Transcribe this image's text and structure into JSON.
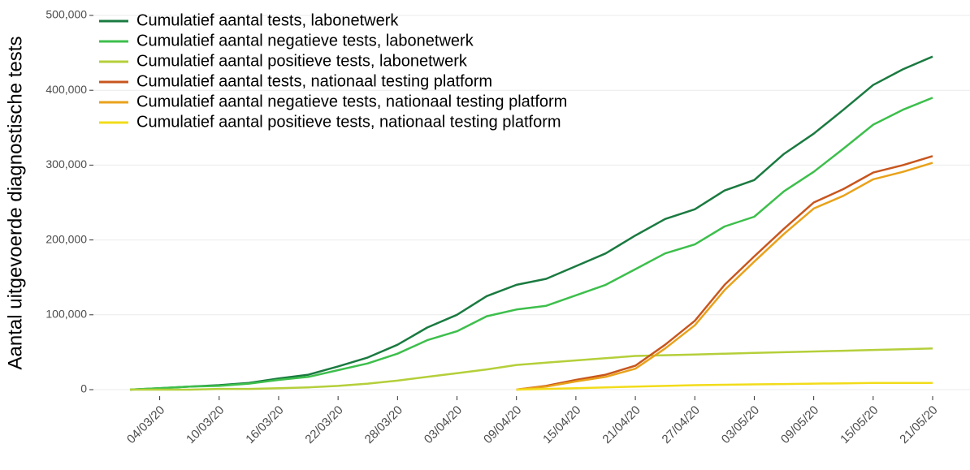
{
  "chart_data": {
    "type": "line",
    "y_label": "Aantal uitgevoerde diagnostische tests",
    "categories": [
      "01/03/20",
      "04/03/20",
      "07/03/20",
      "10/03/20",
      "13/03/20",
      "16/03/20",
      "19/03/20",
      "22/03/20",
      "25/03/20",
      "28/03/20",
      "31/03/20",
      "03/04/20",
      "06/04/20",
      "09/04/20",
      "12/04/20",
      "15/04/20",
      "18/04/20",
      "21/04/20",
      "24/04/20",
      "27/04/20",
      "30/04/20",
      "03/05/20",
      "06/05/20",
      "09/05/20",
      "12/05/20",
      "15/05/20",
      "18/05/20",
      "21/05/20"
    ],
    "xticks": [
      "04/03/20",
      "10/03/20",
      "16/03/20",
      "22/03/20",
      "28/03/20",
      "03/04/20",
      "09/04/20",
      "15/04/20",
      "21/04/20",
      "27/04/20",
      "03/05/20",
      "09/05/20",
      "15/05/20",
      "21/05/20"
    ],
    "ylim": [
      0,
      500000
    ],
    "yticks": [
      0,
      {
        "value": 100000,
        "label": "100,000"
      },
      {
        "value": 200000,
        "label": "200,000"
      },
      {
        "value": 300000,
        "label": "300,000"
      },
      {
        "value": 400000,
        "label": "400,000"
      },
      {
        "value": 500000,
        "label": "500,000"
      }
    ],
    "grid": true,
    "legend": "top-left",
    "series": [
      {
        "name": "Cumulatief aantal tests, labonetwerk",
        "color": "#1a7a40",
        "values": [
          0,
          2000,
          4000,
          6000,
          9000,
          15000,
          20000,
          31000,
          43000,
          60000,
          83000,
          100000,
          125000,
          140000,
          148000,
          165000,
          182000,
          206000,
          228000,
          241000,
          266000,
          280000,
          315000,
          342000,
          374000,
          407000,
          428000,
          445000
        ]
      },
      {
        "name": "Cumulatief aantal negatieve tests, labonetwerk",
        "color": "#3dbf4c",
        "values": [
          0,
          2000,
          4000,
          5000,
          8000,
          13000,
          17000,
          26000,
          35000,
          48000,
          66000,
          78000,
          98000,
          107000,
          112000,
          126000,
          140000,
          161000,
          182000,
          194000,
          218000,
          231000,
          265000,
          291000,
          322000,
          354000,
          374000,
          390000
        ]
      },
      {
        "name": "Cumulatief aantal positieve tests, labonetwerk",
        "color": "#b4cf3a",
        "values": [
          0,
          0,
          0,
          1000,
          1000,
          2000,
          3000,
          5000,
          8000,
          12000,
          17000,
          22000,
          27000,
          33000,
          36000,
          39000,
          42000,
          45000,
          46000,
          47000,
          48000,
          49000,
          50000,
          51000,
          52000,
          53000,
          54000,
          55000
        ]
      },
      {
        "name": "Cumulatief aantal tests, nationaal testing platform",
        "color": "#c8561e",
        "values": [
          null,
          null,
          null,
          null,
          null,
          null,
          null,
          null,
          null,
          null,
          null,
          null,
          null,
          0,
          5000,
          13000,
          20000,
          32000,
          60000,
          92000,
          140000,
          178000,
          215000,
          250000,
          268000,
          290000,
          300000,
          312000
        ]
      },
      {
        "name": "Cumulatief aantal negatieve tests, nationaal testing platform",
        "color": "#e9a21a",
        "values": [
          null,
          null,
          null,
          null,
          null,
          null,
          null,
          null,
          null,
          null,
          null,
          null,
          null,
          0,
          4000,
          11000,
          17000,
          28000,
          55000,
          86000,
          133000,
          171000,
          208000,
          242000,
          259000,
          281000,
          291000,
          303000
        ]
      },
      {
        "name": "Cumulatief aantal positieve tests, nationaal testing platform",
        "color": "#f2dc1a",
        "values": [
          null,
          null,
          null,
          null,
          null,
          null,
          null,
          null,
          null,
          null,
          null,
          null,
          null,
          0,
          1000,
          2000,
          3000,
          4000,
          5000,
          6000,
          6500,
          7000,
          7500,
          8000,
          8500,
          9000,
          9000,
          9000
        ]
      }
    ]
  }
}
